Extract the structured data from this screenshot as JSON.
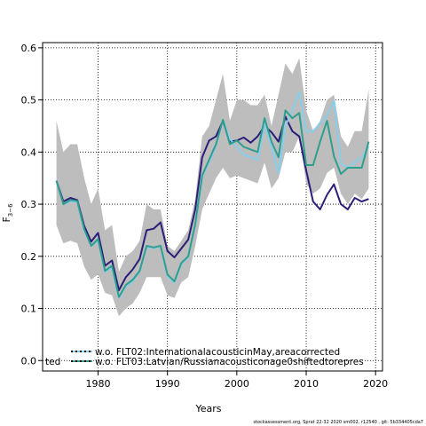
{
  "chart_data": {
    "type": "line",
    "xlabel": "Years",
    "ylabel": "F",
    "ylabel_sub": "3−6",
    "xlim": [
      1972,
      2021
    ],
    "ylim": [
      -0.02,
      0.61
    ],
    "xticks": [
      1980,
      1990,
      2000,
      2010,
      2020
    ],
    "yticks": [
      "0.0",
      "0.1",
      "0.2",
      "0.3",
      "0.4",
      "0.5",
      "0.6"
    ],
    "grid": true,
    "years": [
      1974,
      1975,
      1976,
      1977,
      1978,
      1979,
      1980,
      1981,
      1982,
      1983,
      1984,
      1985,
      1986,
      1987,
      1988,
      1989,
      1990,
      1991,
      1992,
      1993,
      1994,
      1995,
      1996,
      1997,
      1998,
      1999,
      2000,
      2001,
      2002,
      2003,
      2004,
      2005,
      2006,
      2007,
      2008,
      2009,
      2010,
      2011,
      2012,
      2013,
      2014,
      2015,
      2016,
      2017,
      2018,
      2019
    ],
    "band": {
      "color": "#bdbdbd",
      "upper": [
        0.46,
        0.4,
        0.415,
        0.415,
        0.35,
        0.3,
        0.33,
        0.25,
        0.26,
        0.17,
        0.2,
        0.21,
        0.23,
        0.3,
        0.29,
        0.29,
        0.22,
        0.21,
        0.23,
        0.25,
        0.31,
        0.43,
        0.45,
        0.5,
        0.55,
        0.46,
        0.5,
        0.5,
        0.49,
        0.49,
        0.51,
        0.45,
        0.51,
        0.57,
        0.55,
        0.58,
        0.48,
        0.44,
        0.46,
        0.5,
        0.51,
        0.43,
        0.41,
        0.44,
        0.44,
        0.52
      ],
      "lower": [
        0.26,
        0.225,
        0.23,
        0.225,
        0.18,
        0.155,
        0.165,
        0.13,
        0.125,
        0.085,
        0.1,
        0.11,
        0.13,
        0.16,
        0.16,
        0.16,
        0.125,
        0.12,
        0.15,
        0.16,
        0.22,
        0.29,
        0.32,
        0.35,
        0.37,
        0.35,
        0.355,
        0.35,
        0.345,
        0.34,
        0.38,
        0.33,
        0.35,
        0.4,
        0.4,
        0.43,
        0.34,
        0.32,
        0.33,
        0.36,
        0.37,
        0.32,
        0.3,
        0.32,
        0.31,
        0.33
      ]
    },
    "series": [
      {
        "name": "",
        "color": "#2b1e78",
        "values": [
          0.345,
          0.305,
          0.312,
          0.308,
          0.258,
          0.228,
          0.245,
          0.182,
          0.192,
          0.135,
          0.16,
          0.175,
          0.195,
          0.25,
          0.253,
          0.265,
          0.21,
          0.198,
          0.215,
          0.232,
          0.29,
          0.39,
          0.422,
          0.43,
          0.46,
          0.42,
          0.422,
          0.428,
          0.418,
          0.43,
          0.45,
          0.438,
          0.42,
          0.468,
          0.44,
          0.43,
          0.365,
          0.305,
          0.29,
          0.318,
          0.338,
          0.3,
          0.29,
          0.312,
          0.305,
          0.31
        ]
      },
      {
        "name": "w.o. FLT02:InternationalacousticinMay,areacorrected",
        "color": "#87ceeb",
        "values": [
          0.345,
          0.3,
          0.305,
          0.305,
          0.25,
          0.22,
          0.23,
          0.17,
          0.178,
          0.12,
          0.142,
          0.152,
          0.17,
          0.218,
          0.215,
          0.22,
          0.162,
          0.15,
          0.185,
          0.198,
          0.26,
          0.352,
          0.38,
          0.412,
          0.462,
          0.425,
          0.41,
          0.395,
          0.39,
          0.385,
          0.455,
          0.41,
          0.36,
          0.45,
          0.48,
          0.515,
          0.44,
          0.44,
          0.455,
          0.47,
          0.498,
          0.378,
          0.37,
          0.38,
          0.39,
          0.41
        ]
      },
      {
        "name": "w.o. FLT03:Latvian/Russianacousticonage0shiftedtorepres",
        "color": "#2e9e8e",
        "values": [
          0.345,
          0.3,
          0.308,
          0.306,
          0.252,
          0.22,
          0.233,
          0.172,
          0.182,
          0.122,
          0.145,
          0.155,
          0.172,
          0.22,
          0.217,
          0.22,
          0.165,
          0.152,
          0.187,
          0.2,
          0.262,
          0.355,
          0.385,
          0.415,
          0.462,
          0.415,
          0.422,
          0.41,
          0.405,
          0.4,
          0.465,
          0.42,
          0.39,
          0.48,
          0.465,
          0.475,
          0.375,
          0.375,
          0.42,
          0.46,
          0.392,
          0.358,
          0.37,
          0.37,
          0.37,
          0.42
        ]
      }
    ],
    "legend": {
      "position": "bottom-left",
      "clipped_fragment": "ted"
    }
  },
  "footer": "stockassessment.org,  Sprat  22-32  2020  sm002,  r12540  ,  git:  5b334405cda7"
}
